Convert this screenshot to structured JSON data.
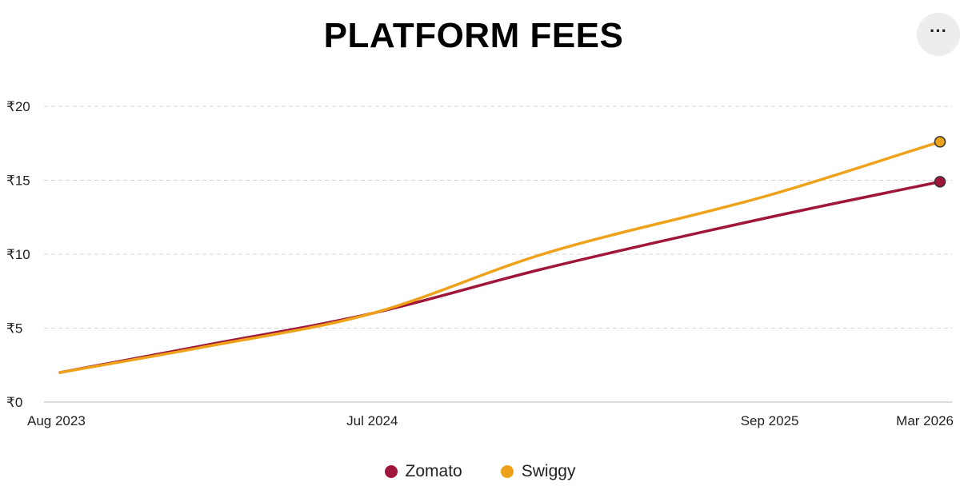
{
  "header": {
    "menu_icon": "more-horizontal-icon",
    "menu_glyph": "···"
  },
  "colors": {
    "zomato": "#a0163a",
    "swiggy": "#eea21a",
    "marker_stroke": "#333333"
  },
  "chart_data": {
    "type": "line",
    "title": "PLATFORM FEES",
    "xlabel": "",
    "ylabel": "",
    "x_ticks": [
      "Aug 2023",
      "Jul 2024",
      "Sep 2025",
      "Mar 2026"
    ],
    "x_tick_dates": [
      "2023-08",
      "2024-07",
      "2025-09",
      "2026-03"
    ],
    "y_ticks": [
      "₹0",
      "₹5",
      "₹10",
      "₹15",
      "₹20"
    ],
    "y_tick_values": [
      0,
      5,
      10,
      15,
      20
    ],
    "ylim": [
      0,
      20
    ],
    "grid": true,
    "legend_position": "bottom-center",
    "series": [
      {
        "name": "Zomato",
        "color": "#a0163a",
        "x": [
          "2023-08",
          "2024-01",
          "2024-07",
          "2025-01",
          "2025-09",
          "2026-03"
        ],
        "y": [
          2,
          3.8,
          6,
          9,
          12.5,
          14.9
        ]
      },
      {
        "name": "Swiggy",
        "color": "#eea21a",
        "x": [
          "2023-08",
          "2024-01",
          "2024-07",
          "2025-01",
          "2025-09",
          "2026-03"
        ],
        "y": [
          2,
          3.7,
          6,
          10,
          14,
          17.6
        ]
      }
    ]
  }
}
